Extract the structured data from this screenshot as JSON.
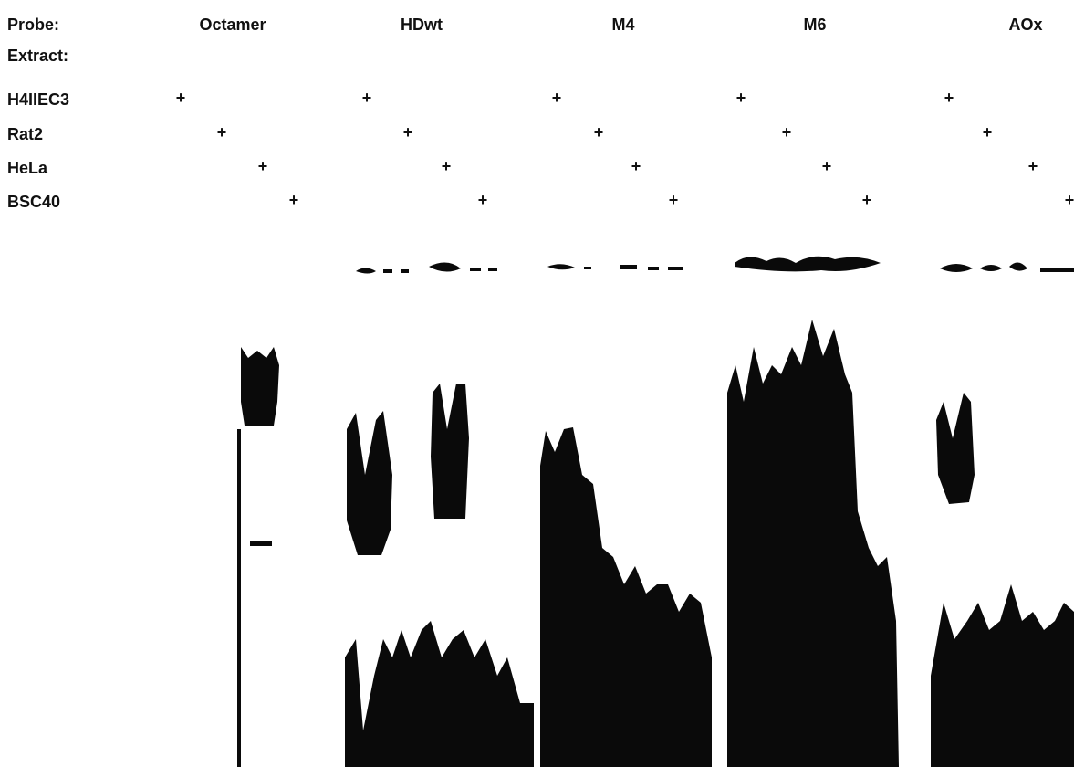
{
  "header": {
    "probe_label": "Probe:",
    "extract_label": "Extract:"
  },
  "probes": [
    "Octamer",
    "HDwt",
    "M4",
    "M6",
    "AOx"
  ],
  "extract_rows": [
    {
      "label": "H4IIEC3",
      "marks": [
        "+",
        "+",
        "+",
        "+",
        "+"
      ]
    },
    {
      "label": "Rat2",
      "marks": [
        "+",
        "+",
        "+",
        "+",
        "+"
      ]
    },
    {
      "label": "HeLa",
      "marks": [
        "+",
        "+",
        "+",
        "+",
        "+"
      ]
    },
    {
      "label": "BSC40",
      "marks": [
        "+",
        "+",
        "+",
        "+",
        "+"
      ]
    }
  ]
}
